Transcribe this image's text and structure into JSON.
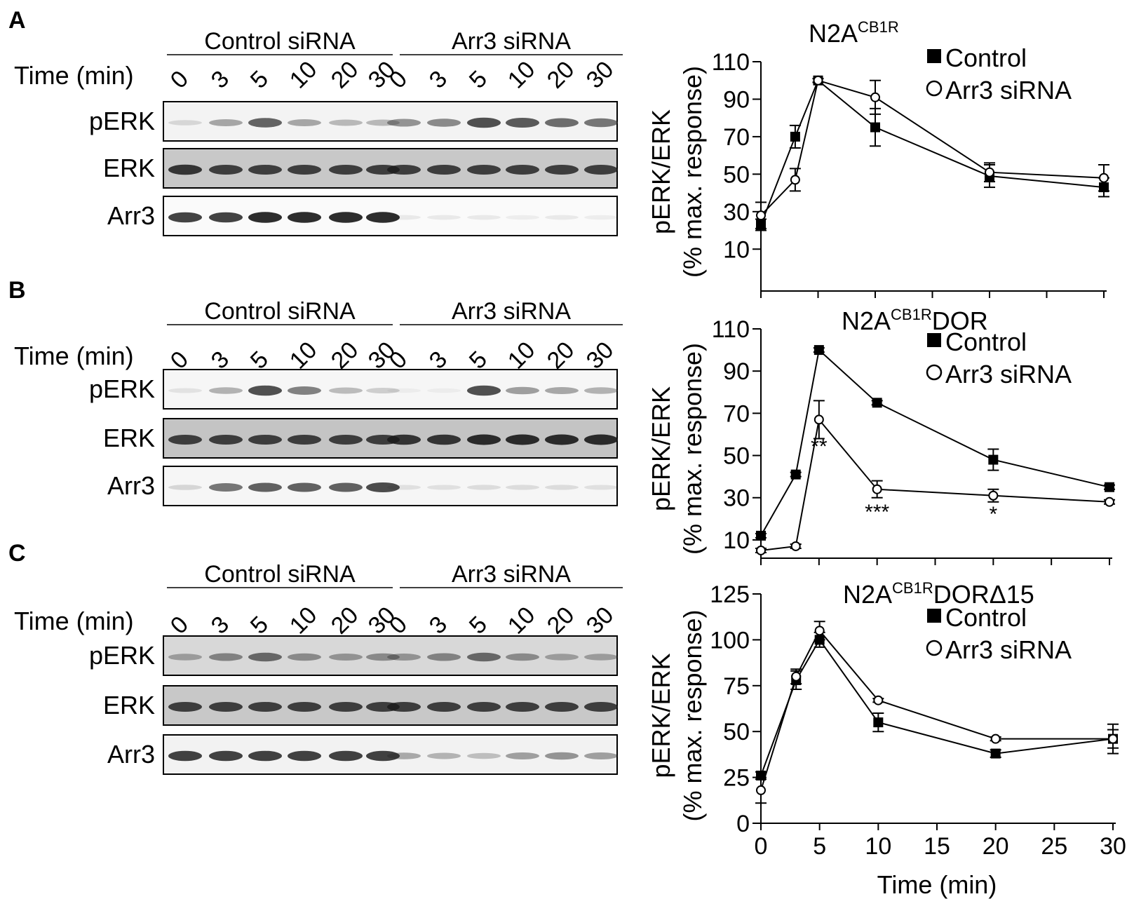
{
  "panels": [
    {
      "letter": "A",
      "group_labels": [
        "Control siRNA",
        "Arr3 siRNA"
      ],
      "time_label": "Time (min)",
      "lane_times": [
        "0",
        "3",
        "5",
        "10",
        "20",
        "30",
        "0",
        "3",
        "5",
        "10",
        "20",
        "30"
      ],
      "blots": [
        {
          "label": "pERK",
          "bg": "#f3f3f3",
          "band_color": "#333333",
          "intensity": [
            0.15,
            0.4,
            0.75,
            0.4,
            0.3,
            0.3,
            0.5,
            0.55,
            0.85,
            0.8,
            0.7,
            0.65
          ]
        },
        {
          "label": "ERK",
          "bg": "#c8c8c8",
          "band_color": "#1a1a1a",
          "intensity": [
            0.85,
            0.8,
            0.8,
            0.8,
            0.8,
            0.8,
            0.8,
            0.8,
            0.8,
            0.8,
            0.8,
            0.8
          ]
        },
        {
          "label": "Arr3",
          "bg": "#fafafa",
          "band_color": "#222222",
          "intensity": [
            0.85,
            0.85,
            0.95,
            0.95,
            0.95,
            0.95,
            0.08,
            0.08,
            0.08,
            0.06,
            0.08,
            0.06
          ]
        }
      ]
    },
    {
      "letter": "B",
      "group_labels": [
        "Control siRNA",
        "Arr3 siRNA"
      ],
      "time_label": "Time (min)",
      "lane_times": [
        "0",
        "3",
        "5",
        "10",
        "20",
        "30",
        "0",
        "3",
        "5",
        "10",
        "20",
        "30"
      ],
      "blots": [
        {
          "label": "pERK",
          "bg": "#f6f6f6",
          "band_color": "#333333",
          "intensity": [
            0.1,
            0.35,
            0.85,
            0.6,
            0.3,
            0.2,
            0.05,
            0.05,
            0.85,
            0.45,
            0.4,
            0.35
          ]
        },
        {
          "label": "ERK",
          "bg": "#c4c4c4",
          "band_color": "#1a1a1a",
          "intensity": [
            0.8,
            0.8,
            0.8,
            0.8,
            0.8,
            0.8,
            0.85,
            0.85,
            0.9,
            0.9,
            0.9,
            0.9
          ]
        },
        {
          "label": "Arr3",
          "bg": "#f6f6f6",
          "band_color": "#222222",
          "intensity": [
            0.15,
            0.6,
            0.7,
            0.7,
            0.7,
            0.8,
            0.1,
            0.1,
            0.12,
            0.12,
            0.12,
            0.1
          ]
        }
      ]
    },
    {
      "letter": "C",
      "group_labels": [
        "Control siRNA",
        "Arr3 siRNA"
      ],
      "time_label": "Time (min)",
      "lane_times": [
        "0",
        "3",
        "5",
        "10",
        "20",
        "30",
        "0",
        "3",
        "5",
        "10",
        "20",
        "30"
      ],
      "blots": [
        {
          "label": "pERK",
          "bg": "#d8d8d8",
          "band_color": "#2a2a2a",
          "intensity": [
            0.35,
            0.5,
            0.65,
            0.45,
            0.4,
            0.45,
            0.4,
            0.5,
            0.65,
            0.45,
            0.35,
            0.35
          ]
        },
        {
          "label": "ERK",
          "bg": "#c8c8c8",
          "band_color": "#1a1a1a",
          "intensity": [
            0.8,
            0.8,
            0.8,
            0.8,
            0.8,
            0.8,
            0.8,
            0.8,
            0.8,
            0.8,
            0.8,
            0.8
          ]
        },
        {
          "label": "Arr3",
          "bg": "#f2f2f2",
          "band_color": "#222222",
          "intensity": [
            0.85,
            0.85,
            0.85,
            0.85,
            0.85,
            0.85,
            0.35,
            0.3,
            0.25,
            0.4,
            0.45,
            0.4
          ]
        }
      ]
    }
  ],
  "chart_data": [
    {
      "type": "line",
      "title_main": "N2A",
      "title_sup": "CB1R",
      "title_post": "",
      "ylabel_line1": "pERK/ERK",
      "ylabel_line2": "(% max. response)",
      "xlim": [
        0,
        30
      ],
      "ylim": [
        0,
        110
      ],
      "yticks": [
        10,
        30,
        50,
        70,
        90,
        110
      ],
      "xtick_labels_shown": false,
      "xlabel": "",
      "legend_position": "top-right",
      "x": [
        0,
        3,
        5,
        10,
        20,
        30
      ],
      "series": [
        {
          "name": "Control",
          "marker": "filled-square",
          "values": [
            23,
            70,
            100,
            75,
            49,
            43
          ],
          "errors": [
            3,
            6,
            1,
            10,
            6,
            5
          ]
        },
        {
          "name": "Arr3 siRNA",
          "marker": "open-circle",
          "values": [
            28,
            47,
            100,
            91,
            51,
            48
          ],
          "errors": [
            7,
            6,
            1,
            9,
            5,
            7
          ]
        }
      ],
      "annotations": []
    },
    {
      "type": "line",
      "title_main": "N2A",
      "title_sup": "CB1R",
      "title_post": "DOR",
      "ylabel_line1": "pERK/ERK",
      "ylabel_line2": "(% max. response)",
      "xlim": [
        0,
        30
      ],
      "ylim": [
        3,
        110
      ],
      "yticks": [
        10,
        30,
        50,
        70,
        90,
        110
      ],
      "xtick_labels_shown": false,
      "xlabel": "",
      "legend_position": "top-right",
      "x": [
        0,
        3,
        5,
        10,
        20,
        30
      ],
      "series": [
        {
          "name": "Control",
          "marker": "filled-square",
          "values": [
            12,
            41,
            100,
            75,
            48,
            35
          ],
          "errors": [
            1,
            1,
            1,
            1,
            5,
            1
          ]
        },
        {
          "name": "Arr3 siRNA",
          "marker": "open-circle",
          "values": [
            5,
            7,
            67,
            34,
            31,
            28
          ],
          "errors": [
            1,
            1,
            9,
            4,
            3,
            1
          ]
        }
      ],
      "annotations": [
        {
          "x": 5,
          "y": 55,
          "text": "**"
        },
        {
          "x": 10,
          "y": 24,
          "text": "***"
        },
        {
          "x": 20,
          "y": 23,
          "text": "*"
        }
      ]
    },
    {
      "type": "line",
      "title_main": "N2A",
      "title_sup": "CB1R",
      "title_post": "DORΔ15",
      "ylabel_line1": "pERK/ERK",
      "ylabel_line2": "(% max. response)",
      "xlim": [
        0,
        30
      ],
      "ylim": [
        0,
        125
      ],
      "yticks": [
        0,
        25,
        50,
        75,
        100,
        125
      ],
      "xtick_labels_shown": true,
      "xticks": [
        0,
        5,
        10,
        15,
        20,
        25,
        30
      ],
      "xlabel": "Time (min)",
      "legend_position": "top-right",
      "x": [
        0,
        3,
        5,
        10,
        20,
        30
      ],
      "series": [
        {
          "name": "Control",
          "marker": "filled-square",
          "values": [
            26,
            78,
            100,
            55,
            38,
            46
          ],
          "errors": [
            2,
            5,
            4,
            5,
            2,
            5
          ]
        },
        {
          "name": "Arr3 siRNA",
          "marker": "open-circle",
          "values": [
            18,
            80,
            105,
            67,
            46,
            46
          ],
          "errors": [
            7,
            4,
            5,
            1,
            1,
            8
          ]
        }
      ],
      "annotations": []
    }
  ]
}
